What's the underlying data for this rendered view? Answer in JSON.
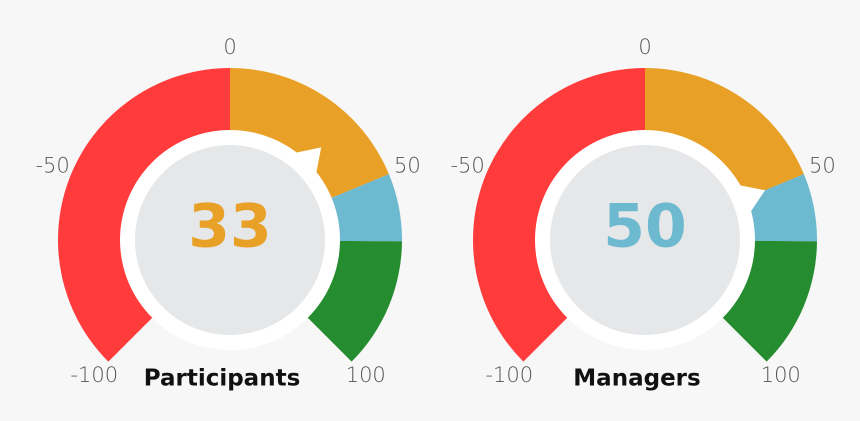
{
  "chart_data": [
    {
      "type": "gauge",
      "title": "Participants",
      "value": 33,
      "lim": [
        -100,
        100
      ],
      "ticks": [
        -100,
        -50,
        0,
        50,
        100
      ],
      "bands": [
        {
          "from": -100,
          "to": 0,
          "color": "#ff3b3b"
        },
        {
          "from": 0,
          "to": 50,
          "color": "#e8a026"
        },
        {
          "from": 50,
          "to": 67,
          "color": "#6db9cf"
        },
        {
          "from": 67,
          "to": 100,
          "color": "#268c30"
        }
      ]
    },
    {
      "type": "gauge",
      "title": "Managers",
      "value": 50,
      "lim": [
        -100,
        100
      ],
      "ticks": [
        -100,
        -50,
        0,
        50,
        100
      ],
      "bands": [
        {
          "from": -100,
          "to": 0,
          "color": "#ff3b3b"
        },
        {
          "from": 0,
          "to": 50,
          "color": "#e8a026"
        },
        {
          "from": 50,
          "to": 67,
          "color": "#6db9cf"
        },
        {
          "from": 67,
          "to": 100,
          "color": "#268c30"
        }
      ]
    }
  ]
}
